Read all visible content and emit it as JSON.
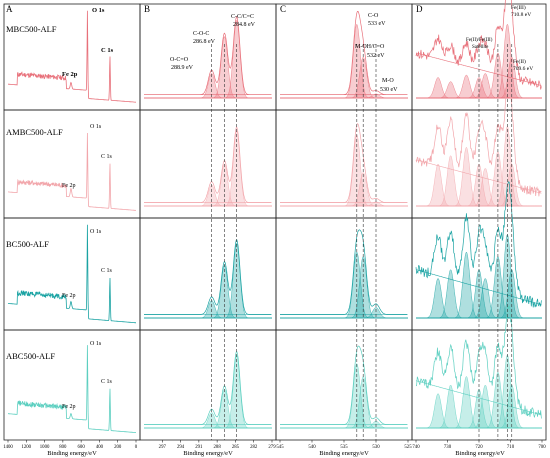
{
  "figure": {
    "panel_letters": [
      "A",
      "B",
      "C",
      "D"
    ],
    "xlabel": "Binding energy/eV"
  },
  "rows": [
    {
      "label": "MBC500-ALF",
      "color": "#e8707a"
    },
    {
      "label": "AMBC500-ALF",
      "color": "#f2a6ab"
    },
    {
      "label": "BC500-ALF",
      "color": "#1aa3a3"
    },
    {
      "label": "ABC500-ALF",
      "color": "#5ccfc0"
    }
  ],
  "survey_labels": {
    "o1s": "O 1s",
    "c1s": "C 1s",
    "fe2p": "Fe 2p"
  },
  "c1s_annotations": [
    {
      "line1": "C-C/C=C",
      "line2": "284.8 eV"
    },
    {
      "line1": "C-O-C",
      "line2": "286.8 eV"
    },
    {
      "line1": "O-C=O",
      "line2": "288.9 eV"
    }
  ],
  "o1s_annotations": [
    {
      "line1": "C-O",
      "line2": "533 eV"
    },
    {
      "line1": "M-OH/C=O",
      "line2": "532 eV"
    },
    {
      "line1": "M-O",
      "line2": "530 eV"
    }
  ],
  "fe_annotations": [
    {
      "line1": "Fe(III)",
      "line2": "710.8 eV"
    },
    {
      "line1": "Fe(II)/Fe(III)",
      "line2": "Satellite"
    },
    {
      "line1": "Fe(II)",
      "line2": "709.6 eV"
    }
  ],
  "chart_data": [
    {
      "type": "line",
      "panel": "A",
      "xlabel": "Binding energy/eV",
      "xlim": [
        1400,
        0
      ],
      "x_ticks": [
        1400,
        1200,
        1000,
        800,
        600,
        400,
        200,
        0
      ],
      "peaks_eV": {
        "O 1s": 531,
        "C 1s": 285,
        "Fe 2p": 711
      },
      "series": [
        {
          "name": "MBC500-ALF",
          "peak_heights": {
            "O 1s": 1.0,
            "C 1s": 0.55,
            "Fe 2p": 0.08
          }
        },
        {
          "name": "AMBC500-ALF",
          "peak_heights": {
            "O 1s": 0.8,
            "C 1s": 0.55,
            "Fe 2p": 0.1
          }
        },
        {
          "name": "BC500-ALF",
          "peak_heights": {
            "O 1s": 1.0,
            "C 1s": 0.5,
            "Fe 2p": 0.08
          }
        },
        {
          "name": "ABC500-ALF",
          "peak_heights": {
            "O 1s": 0.9,
            "C 1s": 0.5,
            "Fe 2p": 0.06
          }
        }
      ]
    },
    {
      "type": "area",
      "panel": "B",
      "xlabel": "Binding energy/eV",
      "xlim": [
        300,
        279
      ],
      "x_ticks": [
        297,
        294,
        291,
        288,
        285,
        282,
        279
      ],
      "components_eV": [
        288.9,
        286.8,
        284.8
      ],
      "series": [
        {
          "name": "MBC500-ALF",
          "heights": [
            0.3,
            0.75,
            0.95
          ]
        },
        {
          "name": "AMBC500-ALF",
          "heights": [
            0.25,
            0.5,
            0.9
          ]
        },
        {
          "name": "BC500-ALF",
          "heights": [
            0.2,
            0.6,
            0.85
          ]
        },
        {
          "name": "ABC500-ALF",
          "heights": [
            0.18,
            0.45,
            0.85
          ]
        }
      ]
    },
    {
      "type": "area",
      "panel": "C",
      "xlabel": "Binding energy/eV",
      "xlim": [
        545,
        525
      ],
      "x_ticks": [
        545,
        540,
        535,
        530,
        525
      ],
      "components_eV": [
        533,
        532,
        530
      ],
      "series": [
        {
          "name": "MBC500-ALF",
          "heights": [
            0.9,
            0.5,
            0.05
          ]
        },
        {
          "name": "AMBC500-ALF",
          "heights": [
            0.85,
            0.4,
            0.05
          ]
        },
        {
          "name": "BC500-ALF",
          "heights": [
            0.75,
            0.7,
            0.12
          ]
        },
        {
          "name": "ABC500-ALF",
          "heights": [
            0.75,
            0.6,
            0.08
          ]
        }
      ]
    },
    {
      "type": "area",
      "panel": "D",
      "xlabel": "Binding energy/eV",
      "xlim": [
        740,
        700
      ],
      "x_ticks": [
        740,
        730,
        720,
        710,
        700
      ],
      "components_eV": [
        733,
        729,
        724,
        720,
        718,
        714,
        711,
        709.6
      ],
      "series": [
        {
          "name": "MBC500-ALF",
          "heights": [
            0.25,
            0.2,
            0.28,
            0.25,
            0.3,
            0.55,
            0.9,
            0.5
          ]
        },
        {
          "name": "AMBC500-ALF",
          "heights": [
            0.5,
            0.6,
            0.7,
            0.5,
            0.45,
            0.65,
            0.95,
            0.5
          ]
        },
        {
          "name": "BC500-ALF",
          "heights": [
            0.45,
            0.55,
            0.75,
            0.55,
            0.45,
            0.7,
            0.95,
            0.55
          ]
        },
        {
          "name": "ABC500-ALF",
          "heights": [
            0.4,
            0.5,
            0.6,
            0.45,
            0.5,
            0.65,
            0.85,
            0.5
          ]
        }
      ]
    }
  ]
}
